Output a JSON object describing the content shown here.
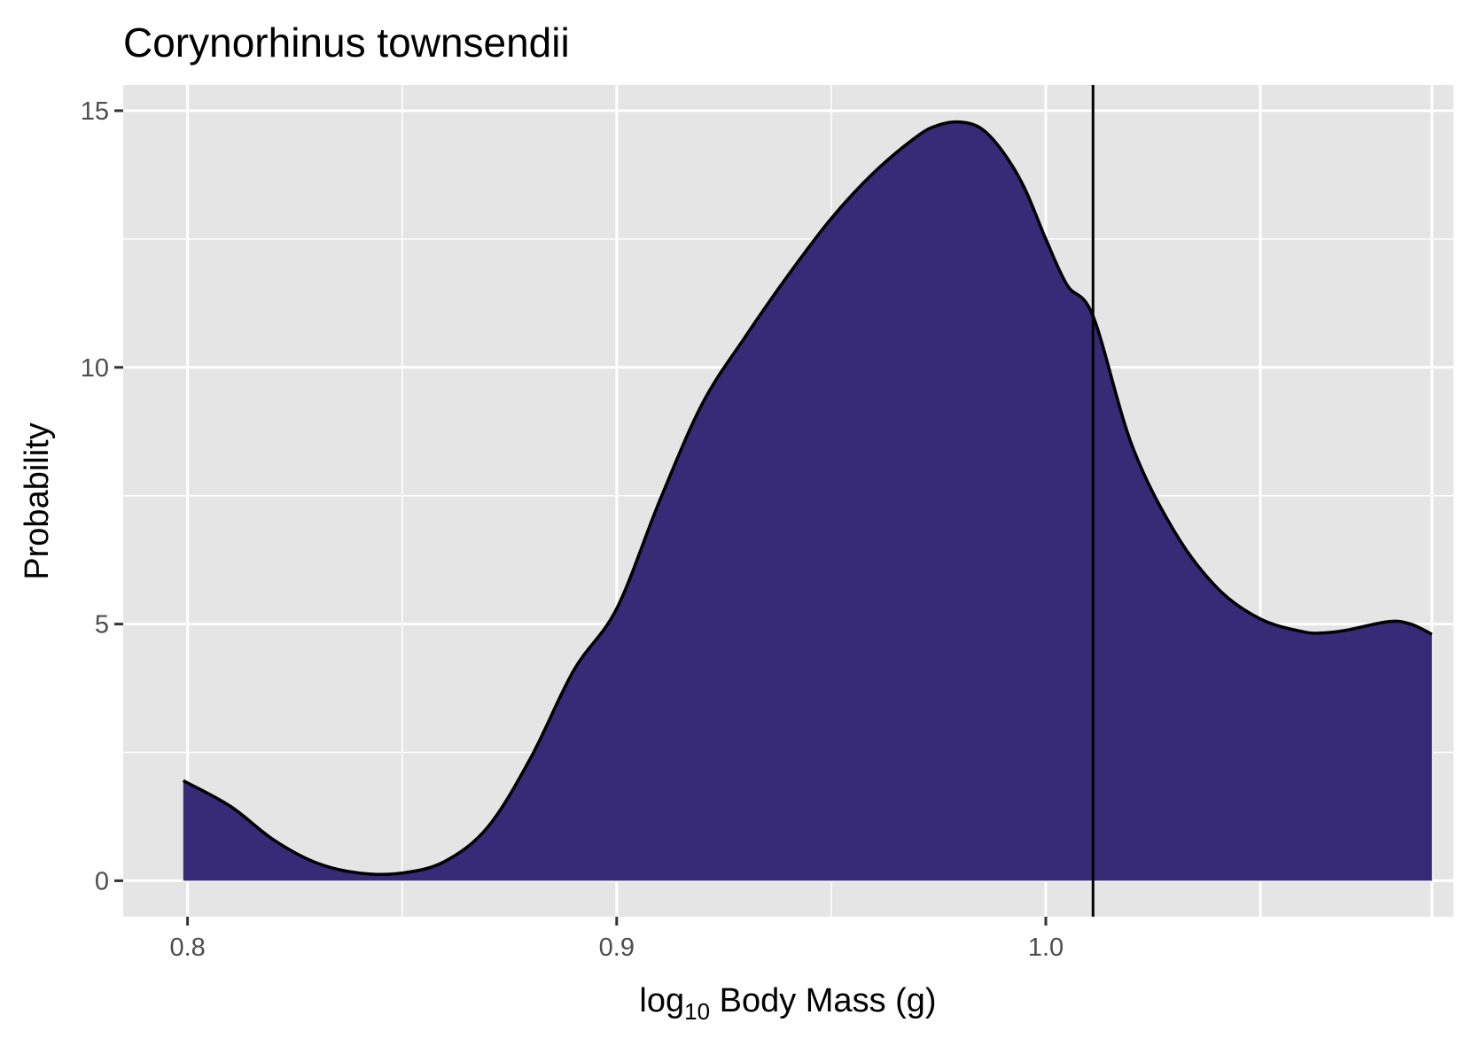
{
  "chart_data": {
    "type": "area",
    "title": "Corynorhinus townsendii",
    "xlabel_main": "log",
    "xlabel_sub": "10",
    "xlabel_rest": " Body Mass (g)",
    "ylabel": "Probability",
    "xlim": [
      0.785,
      1.095
    ],
    "ylim": [
      -0.7,
      15.5
    ],
    "x_ticks": [
      0.8,
      0.9,
      1.0
    ],
    "x_tick_labels": [
      "0.8",
      "0.9",
      "1.0"
    ],
    "x_minor_gridlines": [
      0.85,
      0.95,
      1.05
    ],
    "x_major_gridlines": [
      0.8,
      0.9,
      1.0,
      1.05,
      1.09
    ],
    "y_ticks": [
      0,
      5,
      10,
      15
    ],
    "y_tick_labels": [
      "0",
      "5",
      "10",
      "15"
    ],
    "y_minor_gridlines": [
      2.5,
      7.5,
      12.5
    ],
    "grid": true,
    "fill_color": "#372A76",
    "panel_color": "#E5E5E5",
    "vline_x": 1.011,
    "density": {
      "x": [
        0.799,
        0.81,
        0.82,
        0.83,
        0.84,
        0.85,
        0.86,
        0.87,
        0.88,
        0.89,
        0.9,
        0.91,
        0.92,
        0.93,
        0.94,
        0.95,
        0.96,
        0.97,
        0.975,
        0.98,
        0.985,
        0.99,
        0.995,
        1.0,
        1.005,
        1.011,
        1.02,
        1.03,
        1.04,
        1.05,
        1.06,
        1.065,
        1.07,
        1.08,
        1.085,
        1.09
      ],
      "y": [
        1.95,
        1.45,
        0.8,
        0.35,
        0.15,
        0.15,
        0.38,
        1.05,
        2.4,
        4.1,
        5.3,
        7.4,
        9.3,
        10.6,
        11.8,
        12.9,
        13.8,
        14.5,
        14.72,
        14.78,
        14.65,
        14.2,
        13.5,
        12.5,
        11.6,
        11.0,
        8.5,
        6.8,
        5.7,
        5.1,
        4.85,
        4.83,
        4.88,
        5.05,
        5.0,
        4.8
      ]
    }
  }
}
